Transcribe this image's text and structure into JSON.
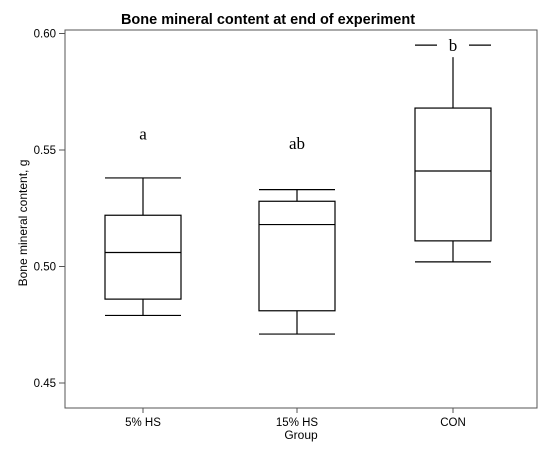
{
  "chart_data": {
    "type": "box",
    "title": "Bone mineral content at end of experiment",
    "xlabel": "Group",
    "ylabel": "Bone mineral content, g",
    "ylim": [
      0.425,
      0.605
    ],
    "yticks": [
      "0.45",
      "0.50",
      "0.55",
      "0.60"
    ],
    "legend": "none",
    "grid": false,
    "categories": [
      "5% HS",
      "15% HS",
      "CON"
    ],
    "boxes": [
      {
        "category": "5% HS",
        "min": 0.479,
        "q1": 0.486,
        "median": 0.506,
        "q3": 0.522,
        "max": 0.538,
        "letter": "a",
        "letter_y": 0.557
      },
      {
        "category": "15% HS",
        "min": 0.471,
        "q1": 0.481,
        "median": 0.518,
        "q3": 0.528,
        "max": 0.533,
        "letter": "ab",
        "letter_y": 0.553
      },
      {
        "category": "CON",
        "min": 0.502,
        "q1": 0.511,
        "median": 0.541,
        "q3": 0.568,
        "max": 0.595,
        "letter": "b",
        "letter_y": 0.595
      }
    ]
  }
}
